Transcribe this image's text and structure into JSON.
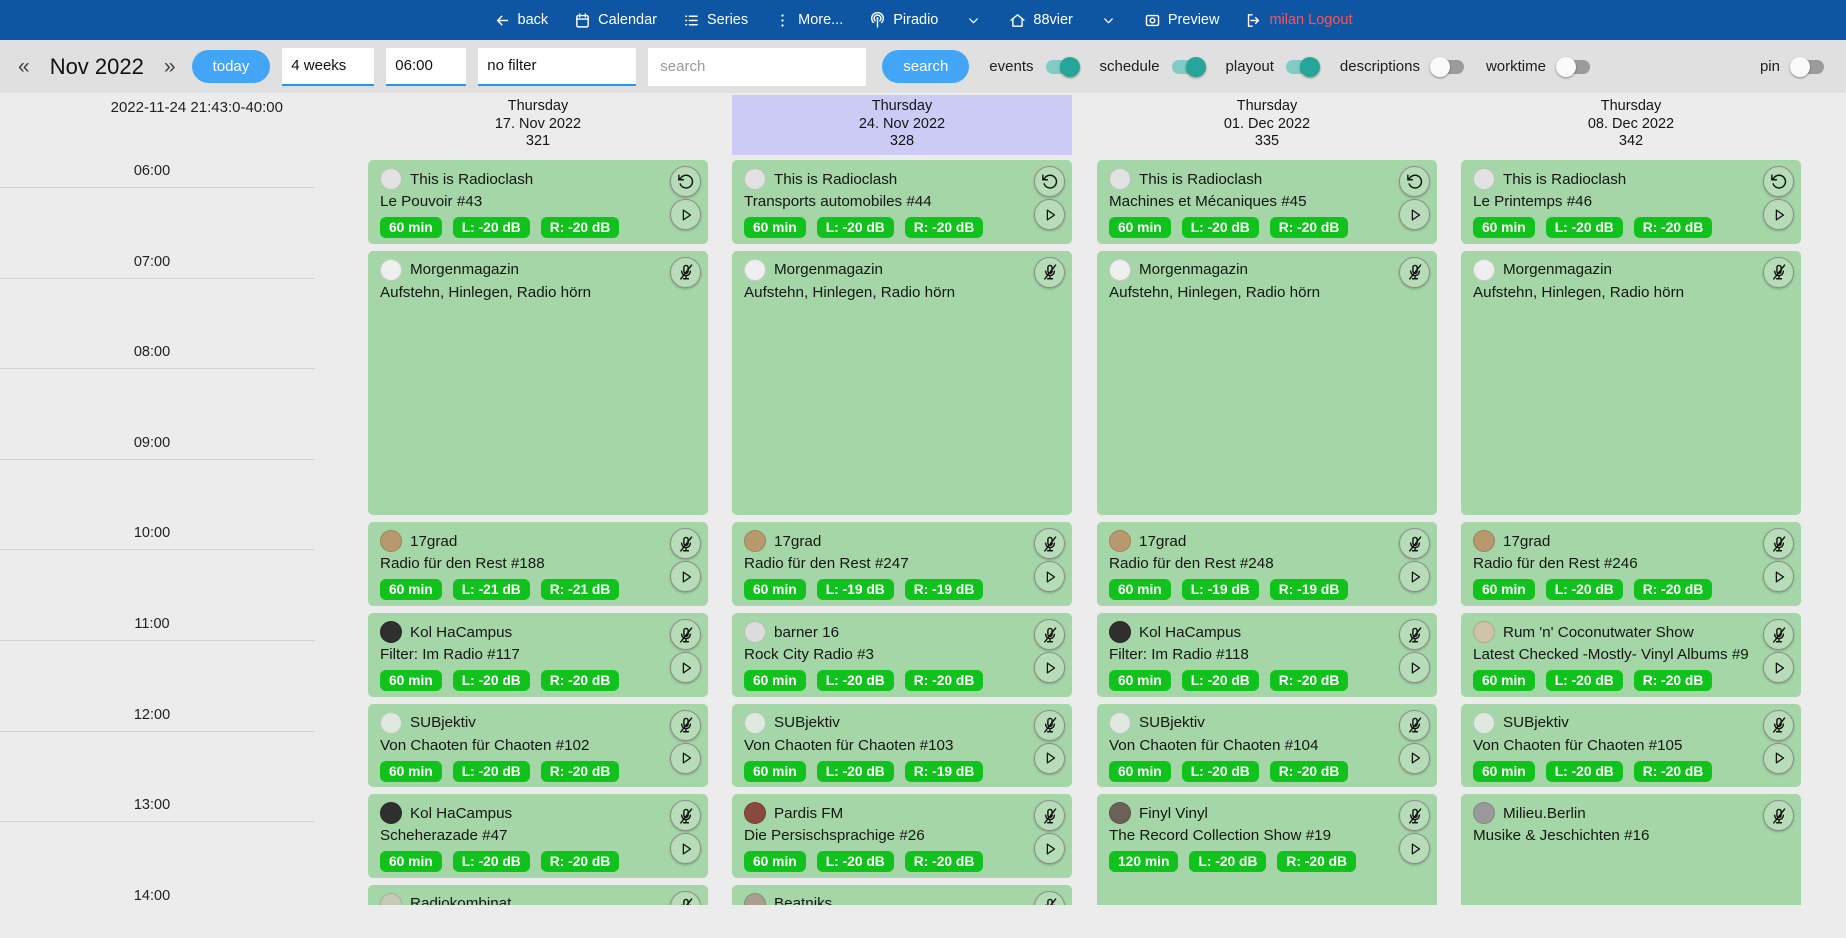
{
  "colors": {
    "navbar_bg": "#0e56a3",
    "accent_blue": "#42a5f5",
    "toolbar_bg": "#e0e0e0",
    "card_green": "#a5d6a7",
    "badge_green": "#12c21c",
    "toggle_on": "#26a69a",
    "highlight_lavender": "#cbcbf6",
    "logout_red": "#ff5252",
    "page_bg": "#ececec"
  },
  "navbar": {
    "items": [
      {
        "id": "back",
        "icon": "arrow-left",
        "label": "back"
      },
      {
        "id": "calendar",
        "icon": "calendar",
        "label": "Calendar"
      },
      {
        "id": "series",
        "icon": "list",
        "label": "Series"
      },
      {
        "id": "more",
        "icon": "kebab",
        "label": "More..."
      },
      {
        "id": "piradio",
        "icon": "antenna",
        "label": "Piradio",
        "chevron": true
      },
      {
        "id": "88vier",
        "icon": "home",
        "label": "88vier",
        "chevron": true
      },
      {
        "id": "preview",
        "icon": "preview",
        "label": "Preview"
      },
      {
        "id": "logout",
        "icon": "logout",
        "label": "milan Logout",
        "red": true
      }
    ]
  },
  "toolbar": {
    "prev": "«",
    "next": "»",
    "month_label": "Nov 2022",
    "today_label": "today",
    "range_select": "4 weeks",
    "time_select": "06:00",
    "filter_select": "no filter",
    "search_placeholder": "search",
    "search_button": "search",
    "toggles": [
      {
        "label": "events",
        "on": true
      },
      {
        "label": "schedule",
        "on": true
      },
      {
        "label": "playout",
        "on": true
      },
      {
        "label": "descriptions",
        "on": false
      },
      {
        "label": "worktime",
        "on": false
      }
    ],
    "pin": {
      "label": "pin",
      "on": false
    }
  },
  "calendar": {
    "timestamp": "2022-11-24 21:43:0-40:00",
    "hours": [
      "06:00",
      "07:00",
      "08:00",
      "09:00",
      "10:00",
      "11:00",
      "12:00",
      "13:00",
      "14:00"
    ],
    "columns": [
      {
        "weekday": "Thursday",
        "date": "17. Nov 2022",
        "day_number": "321",
        "highlighted": false,
        "events": [
          {
            "show": "This is Radioclash",
            "episode": "Le Pouvoir #43",
            "badges": [
              "60 min",
              "L: -20 dB",
              "R: -20 dB"
            ],
            "icons": [
              "rotate-ccw",
              "play"
            ],
            "slot": 0,
            "hours": 1,
            "avatar": "#e2e2e2"
          },
          {
            "show": "Morgenmagazin",
            "episode": "Aufstehn, Hinlegen, Radio hörn",
            "badges": [],
            "icons": [
              "mic-off"
            ],
            "slot": 1,
            "hours": 3,
            "avatar": "#efefef"
          },
          {
            "show": "17grad",
            "episode": "Radio für den Rest #188",
            "badges": [
              "60 min",
              "L: -21 dB",
              "R: -21 dB"
            ],
            "icons": [
              "mic-off",
              "play"
            ],
            "slot": 4,
            "hours": 1,
            "avatar": "#b8996e"
          },
          {
            "show": "Kol HaCampus",
            "episode": "Filter: Im Radio #117",
            "badges": [
              "60 min",
              "L: -20 dB",
              "R: -20 dB"
            ],
            "icons": [
              "mic-off",
              "play"
            ],
            "slot": 5,
            "hours": 1,
            "avatar": "#2f2f2f"
          },
          {
            "show": "SUBjektiv",
            "episode": "Von Chaoten für Chaoten #102",
            "badges": [
              "60 min",
              "L: -20 dB",
              "R: -20 dB"
            ],
            "icons": [
              "mic-off",
              "play"
            ],
            "slot": 6,
            "hours": 1,
            "avatar": "#dfe9df"
          },
          {
            "show": "Kol HaCampus",
            "episode": "Scheherazade #47",
            "badges": [
              "60 min",
              "L: -20 dB",
              "R: -20 dB"
            ],
            "icons": [
              "mic-off",
              "play"
            ],
            "slot": 7,
            "hours": 1,
            "avatar": "#2f2f2f"
          },
          {
            "show": "Radiokombinat",
            "episode": "",
            "badges": [],
            "icons": [
              "mic-off"
            ],
            "slot": 8,
            "hours": 1,
            "avatar": "#c8c8b6"
          }
        ]
      },
      {
        "weekday": "Thursday",
        "date": "24. Nov 2022",
        "day_number": "328",
        "highlighted": true,
        "events": [
          {
            "show": "This is Radioclash",
            "episode": "Transports automobiles #44",
            "badges": [
              "60 min",
              "L: -20 dB",
              "R: -20 dB"
            ],
            "icons": [
              "rotate-ccw",
              "play"
            ],
            "slot": 0,
            "hours": 1,
            "avatar": "#e2e2e2"
          },
          {
            "show": "Morgenmagazin",
            "episode": "Aufstehn, Hinlegen, Radio hörn",
            "badges": [],
            "icons": [
              "mic-off"
            ],
            "slot": 1,
            "hours": 3,
            "avatar": "#efefef"
          },
          {
            "show": "17grad",
            "episode": "Radio für den Rest #247",
            "badges": [
              "60 min",
              "L: -19 dB",
              "R: -19 dB"
            ],
            "icons": [
              "mic-off",
              "play"
            ],
            "slot": 4,
            "hours": 1,
            "avatar": "#b8996e"
          },
          {
            "show": "barner 16",
            "episode": "Rock City Radio #3",
            "badges": [
              "60 min",
              "L: -20 dB",
              "R: -20 dB"
            ],
            "icons": [
              "mic-off",
              "play"
            ],
            "slot": 5,
            "hours": 1,
            "avatar": "#dcdcdc"
          },
          {
            "show": "SUBjektiv",
            "episode": "Von Chaoten für Chaoten #103",
            "badges": [
              "60 min",
              "L: -20 dB",
              "R: -19 dB"
            ],
            "icons": [
              "mic-off",
              "play"
            ],
            "slot": 6,
            "hours": 1,
            "avatar": "#dfe9df"
          },
          {
            "show": "Pardis FM",
            "episode": "Die Persischsprachige #26",
            "badges": [
              "60 min",
              "L: -20 dB",
              "R: -20 dB"
            ],
            "icons": [
              "mic-off",
              "play"
            ],
            "slot": 7,
            "hours": 1,
            "avatar": "#8a493e"
          },
          {
            "show": "Beatniks",
            "episode": "",
            "badges": [],
            "icons": [
              "mic-off"
            ],
            "slot": 8,
            "hours": 1,
            "avatar": "#a89f92"
          }
        ]
      },
      {
        "weekday": "Thursday",
        "date": "01. Dec 2022",
        "day_number": "335",
        "highlighted": false,
        "events": [
          {
            "show": "This is Radioclash",
            "episode": "Machines et Mécaniques #45",
            "badges": [
              "60 min",
              "L: -20 dB",
              "R: -20 dB"
            ],
            "icons": [
              "rotate-ccw",
              "play"
            ],
            "slot": 0,
            "hours": 1,
            "avatar": "#e2e2e2"
          },
          {
            "show": "Morgenmagazin",
            "episode": "Aufstehn, Hinlegen, Radio hörn",
            "badges": [],
            "icons": [
              "mic-off"
            ],
            "slot": 1,
            "hours": 3,
            "avatar": "#efefef"
          },
          {
            "show": "17grad",
            "episode": "Radio für den Rest #248",
            "badges": [
              "60 min",
              "L: -19 dB",
              "R: -19 dB"
            ],
            "icons": [
              "mic-off",
              "play"
            ],
            "slot": 4,
            "hours": 1,
            "avatar": "#b8996e"
          },
          {
            "show": "Kol HaCampus",
            "episode": "Filter: Im Radio #118",
            "badges": [
              "60 min",
              "L: -20 dB",
              "R: -20 dB"
            ],
            "icons": [
              "mic-off",
              "play"
            ],
            "slot": 5,
            "hours": 1,
            "avatar": "#2f2f2f"
          },
          {
            "show": "SUBjektiv",
            "episode": "Von Chaoten für Chaoten #104",
            "badges": [
              "60 min",
              "L: -20 dB",
              "R: -20 dB"
            ],
            "icons": [
              "mic-off",
              "play"
            ],
            "slot": 6,
            "hours": 1,
            "avatar": "#dfe9df"
          },
          {
            "show": "Finyl Vinyl",
            "episode": "The Record Collection Show #19",
            "badges": [
              "120 min",
              "L: -20 dB",
              "R: -20 dB"
            ],
            "icons": [
              "mic-off",
              "play"
            ],
            "slot": 7,
            "hours": 2,
            "avatar": "#6b6158"
          }
        ]
      },
      {
        "weekday": "Thursday",
        "date": "08. Dec 2022",
        "day_number": "342",
        "highlighted": false,
        "events": [
          {
            "show": "This is Radioclash",
            "episode": "Le Printemps #46",
            "badges": [
              "60 min",
              "L: -20 dB",
              "R: -20 dB"
            ],
            "icons": [
              "rotate-ccw",
              "play"
            ],
            "slot": 0,
            "hours": 1,
            "avatar": "#e2e2e2"
          },
          {
            "show": "Morgenmagazin",
            "episode": "Aufstehn, Hinlegen, Radio hörn",
            "badges": [],
            "icons": [
              "mic-off"
            ],
            "slot": 1,
            "hours": 3,
            "avatar": "#efefef"
          },
          {
            "show": "17grad",
            "episode": "Radio für den Rest #246",
            "badges": [
              "60 min",
              "L: -20 dB",
              "R: -20 dB"
            ],
            "icons": [
              "mic-off",
              "play"
            ],
            "slot": 4,
            "hours": 1,
            "avatar": "#b8996e"
          },
          {
            "show": "Rum 'n' Coconutwater Show",
            "episode": "Latest Checked -Mostly- Vinyl Albums #9",
            "badges": [
              "60 min",
              "L: -20 dB",
              "R: -20 dB"
            ],
            "icons": [
              "mic-off",
              "play"
            ],
            "slot": 5,
            "hours": 1,
            "avatar": "#cfc2a8"
          },
          {
            "show": "SUBjektiv",
            "episode": "Von Chaoten für Chaoten #105",
            "badges": [
              "60 min",
              "L: -20 dB",
              "R: -20 dB"
            ],
            "icons": [
              "mic-off",
              "play"
            ],
            "slot": 6,
            "hours": 1,
            "avatar": "#dfe9df"
          },
          {
            "show": "Milieu.Berlin",
            "episode": "Musike & Jeschichten #16",
            "badges": [],
            "icons": [
              "mic-off"
            ],
            "slot": 7,
            "hours": 2,
            "avatar": "#9a9a9a"
          }
        ]
      }
    ]
  }
}
